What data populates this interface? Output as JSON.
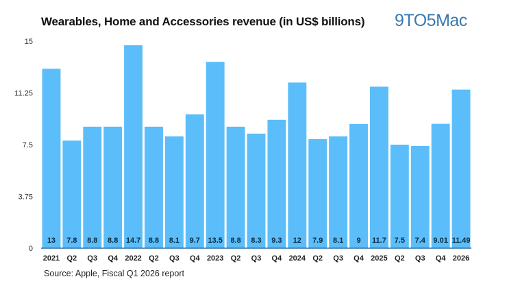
{
  "chart_data": {
    "type": "bar",
    "title": "Wearables, Home and Accessories revenue (in US$ billions)",
    "brand": "9TO5Mac",
    "source": "Source: Apple, Fiscal Q1 2026 report",
    "xlabel": "",
    "ylabel": "",
    "ylim": [
      0,
      15
    ],
    "yticks": [
      "0",
      "3.75",
      "7.5",
      "11.25",
      "15"
    ],
    "grid": false,
    "bar_color": "#5bbefa",
    "categories": [
      "2021",
      "Q2",
      "Q3",
      "Q4",
      "2022",
      "Q2",
      "Q3",
      "Q4",
      "2023",
      "Q2",
      "Q3",
      "Q4",
      "2024",
      "Q2",
      "Q3",
      "Q4",
      "2025",
      "Q2",
      "Q3",
      "Q4",
      "2026"
    ],
    "values": [
      13,
      7.8,
      8.8,
      8.8,
      14.7,
      8.8,
      8.1,
      9.7,
      13.5,
      8.8,
      8.3,
      9.3,
      12,
      7.9,
      8.1,
      9,
      11.7,
      7.5,
      7.4,
      9.01,
      11.49
    ],
    "value_labels": [
      "13",
      "7.8",
      "8.8",
      "8.8",
      "14.7",
      "8.8",
      "8.1",
      "9.7",
      "13.5",
      "8.8",
      "8.3",
      "9.3",
      "12",
      "7.9",
      "8.1",
      "9",
      "11.7",
      "7.5",
      "7.4",
      "9.01",
      "11.49"
    ]
  }
}
